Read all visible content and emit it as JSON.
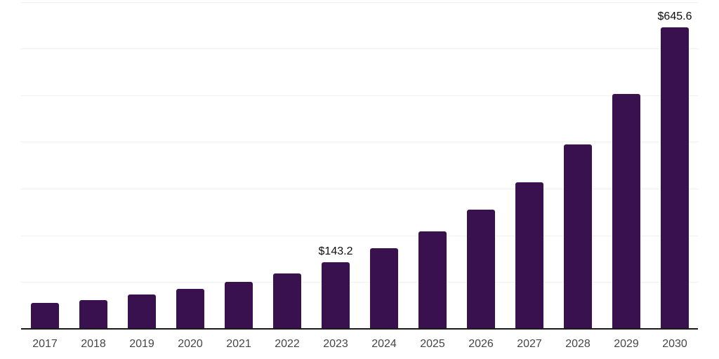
{
  "chart_data": {
    "type": "bar",
    "title": "",
    "xlabel": "",
    "ylabel": "",
    "categories": [
      "2017",
      "2018",
      "2019",
      "2020",
      "2021",
      "2022",
      "2023",
      "2024",
      "2025",
      "2026",
      "2027",
      "2028",
      "2029",
      "2030"
    ],
    "values": [
      55,
      62,
      73,
      85,
      100,
      118,
      143.2,
      172,
      208,
      255,
      314,
      394,
      502,
      645.6
    ],
    "annotations": [
      {
        "category": "2023",
        "text": "$143.2"
      },
      {
        "category": "2030",
        "text": "$645.6"
      }
    ],
    "ylim": [
      0,
      700
    ],
    "grid_step": 100,
    "grid": true,
    "legend": false,
    "y_tick_labels_visible": false,
    "colors": {
      "bar": "#3a114f",
      "gridline": "#f1f1f1",
      "axis": "#1b1b1b",
      "value_label": "#0d0d0d",
      "tick_label": "#464646",
      "background": "#ffffff"
    }
  }
}
